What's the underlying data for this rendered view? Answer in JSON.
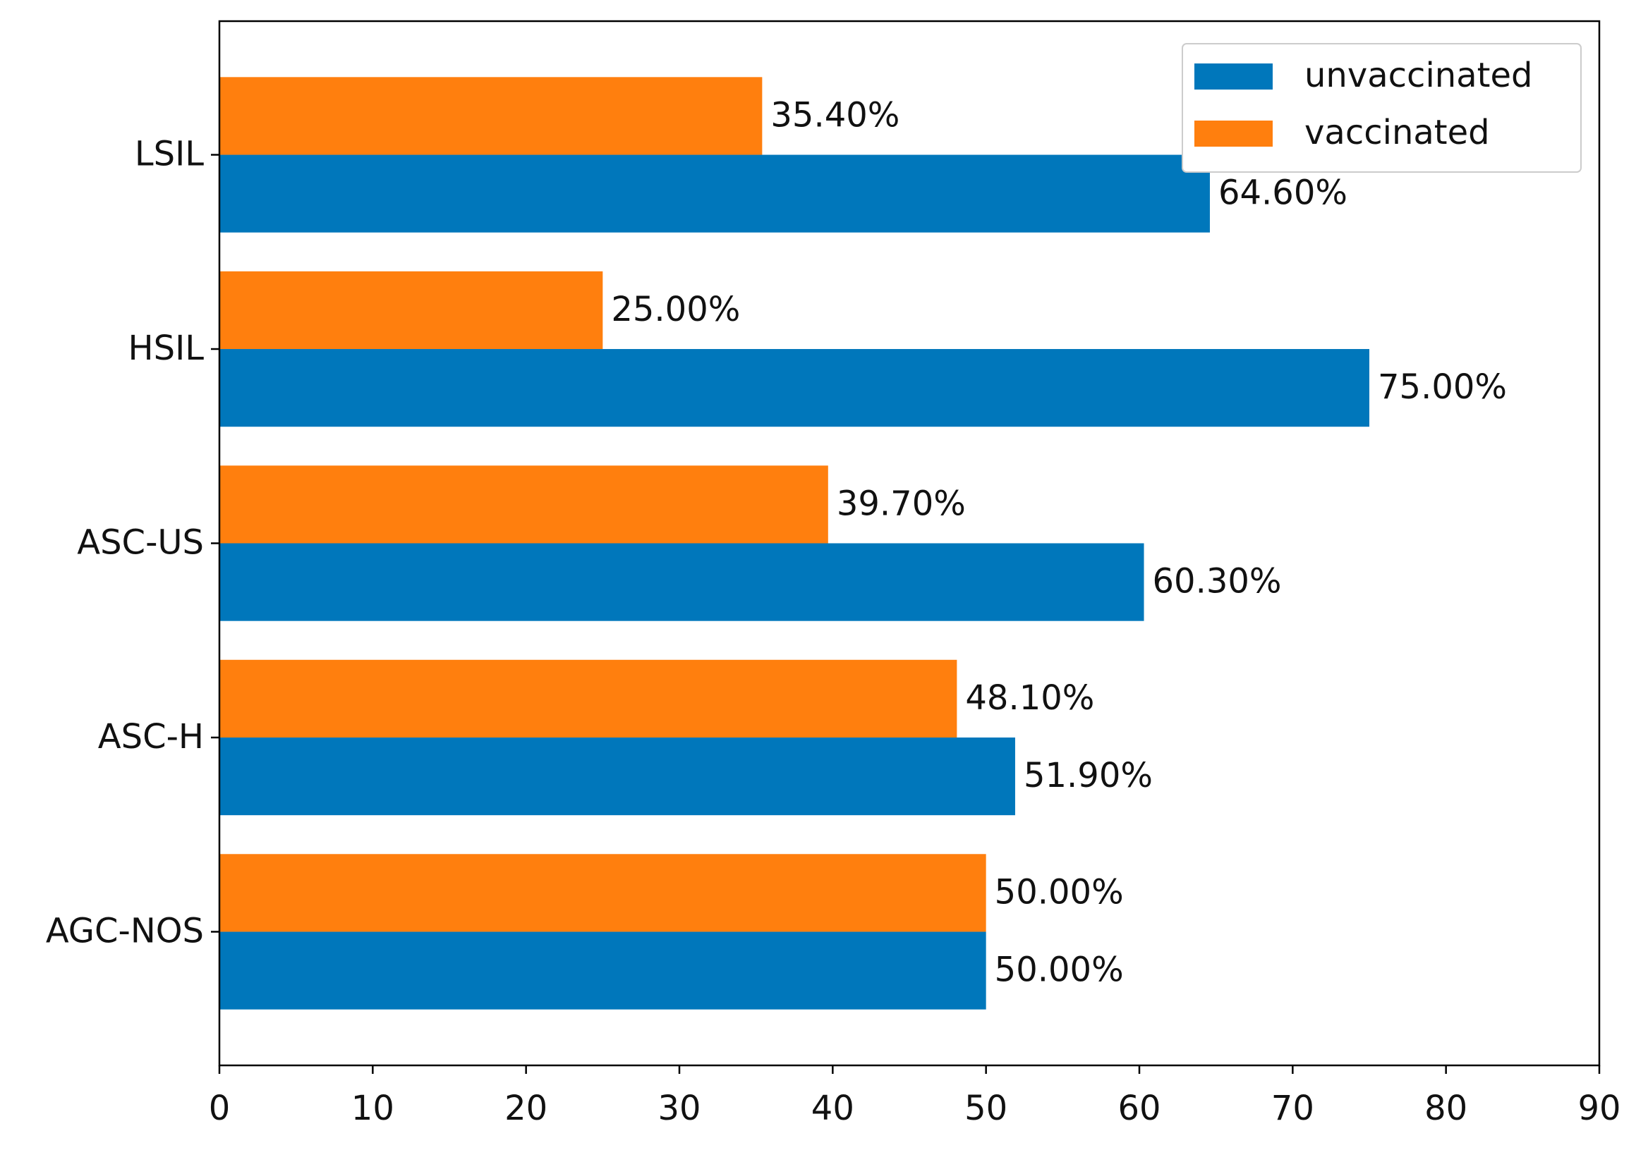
{
  "chart_data": {
    "type": "barh",
    "categories": [
      "AGC-NOS",
      "ASC-H",
      "ASC-US",
      "HSIL",
      "LSIL"
    ],
    "series": [
      {
        "name": "unvaccinated",
        "color": "#0077bb",
        "values": [
          50,
          51.9,
          60.3,
          75,
          64.6
        ],
        "value_labels": [
          "50.00%",
          "51.90%",
          "60.30%",
          "75.00%",
          "64.60%"
        ]
      },
      {
        "name": "vaccinated",
        "color": "#ff7f0e",
        "values": [
          50,
          48.1,
          39.7,
          25,
          35.4
        ],
        "value_labels": [
          "50.00%",
          "48.10%",
          "39.70%",
          "25.00%",
          "35.40%"
        ]
      }
    ],
    "xlim": [
      0,
      90
    ],
    "xticks": [
      0,
      10,
      20,
      30,
      40,
      50,
      60,
      70,
      80,
      90
    ],
    "legend": "upper right",
    "grid": false
  }
}
